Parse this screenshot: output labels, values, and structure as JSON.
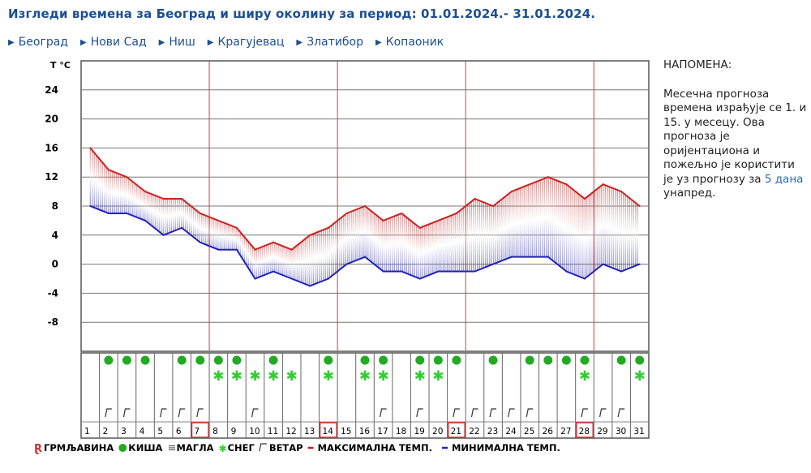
{
  "title": "Изгледи времена за Београд и ширу околину за период: 01.01.2024.- 31.01.2024.",
  "nav": [
    "Београд",
    "Нови Сад",
    "Ниш",
    "Крагујевац",
    "Златибор",
    "Копаоник"
  ],
  "note": {
    "heading": "НАПОМЕНА:",
    "text": "Месечна прогноза времена израђује се 1. и 15. у месецу. Ова прогноза је оријентациона и пожељно је користити је уз прогнозу за ",
    "link": "5 дана",
    "text_end": " унапред."
  },
  "legend": {
    "thunder": "ГРМЉАВИНА",
    "rain": "КИША",
    "fog": "МАГЛА",
    "snow": "СНЕГ",
    "wind": "ВЕТАР",
    "max": "МАКСИМАЛНА ТЕМП.",
    "min": "МИНИМАЛНА ТЕМП."
  },
  "colors": {
    "max": "#cc2222",
    "min": "#2222bb",
    "rain": "#22aa22",
    "snow": "#33cc33",
    "title": "#1d4f91"
  },
  "chart_data": {
    "type": "area",
    "ylabel": "T °C",
    "ylim": [
      -12,
      28
    ],
    "yticks": [
      24,
      20,
      16,
      12,
      8,
      4,
      0,
      -4,
      -8
    ],
    "grid": true,
    "days": [
      1,
      2,
      3,
      4,
      5,
      6,
      7,
      8,
      9,
      10,
      11,
      12,
      13,
      14,
      15,
      16,
      17,
      18,
      19,
      20,
      21,
      22,
      23,
      24,
      25,
      26,
      27,
      28,
      29,
      30,
      31
    ],
    "highlighted_days": [
      7,
      14,
      21,
      28
    ],
    "series": [
      {
        "name": "МАКСИМАЛНА ТЕМП.",
        "values": [
          16,
          13,
          12,
          10,
          9,
          9,
          7,
          6,
          5,
          2,
          3,
          2,
          4,
          5,
          7,
          8,
          6,
          7,
          5,
          6,
          7,
          9,
          8,
          10,
          11,
          12,
          11,
          9,
          11,
          10,
          8
        ]
      },
      {
        "name": "МИНИМАЛНА ТЕМП.",
        "values": [
          8,
          7,
          7,
          6,
          4,
          5,
          3,
          2,
          2,
          -2,
          -1,
          -2,
          -3,
          -2,
          0,
          1,
          -1,
          -1,
          -2,
          -1,
          -1,
          -1,
          0,
          1,
          1,
          1,
          -1,
          -2,
          0,
          -1,
          0
        ]
      }
    ],
    "rain_days": [
      2,
      3,
      4,
      6,
      7,
      8,
      9,
      11,
      14,
      16,
      17,
      19,
      20,
      21,
      23,
      25,
      26,
      27,
      28,
      30,
      31
    ],
    "snow_days": [
      8,
      9,
      10,
      11,
      12,
      14,
      16,
      17,
      19,
      20,
      28,
      31
    ],
    "wind_days": [
      2,
      3,
      5,
      6,
      7,
      10,
      17,
      19,
      21,
      22,
      23,
      24,
      25,
      28,
      29,
      30
    ]
  }
}
